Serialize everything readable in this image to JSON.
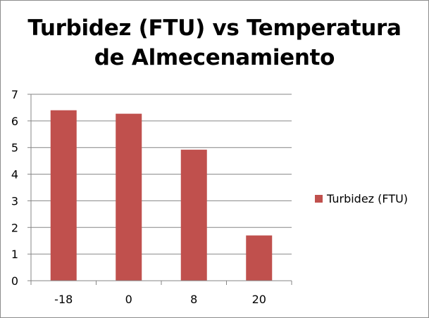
{
  "chart_data": {
    "type": "bar",
    "title": "Turbidez (FTU) vs Temperatura\nde Almecenamiento",
    "xlabel": "",
    "ylabel": "",
    "categories": [
      "-18",
      "0",
      "8",
      "20"
    ],
    "series": [
      {
        "name": "Turbidez (FTU)",
        "values": [
          6.4,
          6.27,
          4.92,
          1.7
        ],
        "color": "#c0504d"
      }
    ],
    "ylim": [
      0,
      7
    ],
    "yticks": [
      0,
      1,
      2,
      3,
      4,
      5,
      6,
      7
    ],
    "grid": true,
    "legend_position": "right"
  }
}
